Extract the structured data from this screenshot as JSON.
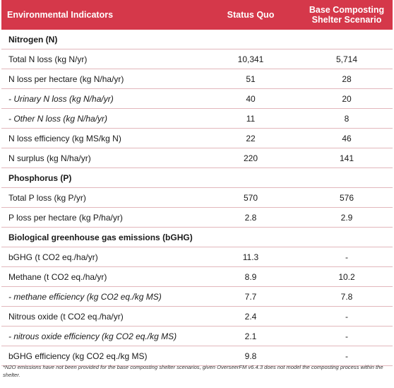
{
  "header": {
    "col1": "Environmental Indicators",
    "col2": "Status Quo",
    "col3_line1": "Base Composting",
    "col3_line2": "Shelter Scenario"
  },
  "rows": [
    {
      "type": "section",
      "label": "Nitrogen (N)",
      "sq": "",
      "bc": ""
    },
    {
      "type": "row",
      "label": "Total N loss (kg N/yr)",
      "sq": "10,341",
      "bc": "5,714"
    },
    {
      "type": "row",
      "label": "N loss per hectare (kg N/ha/yr)",
      "sq": "51",
      "bc": "28"
    },
    {
      "type": "sub",
      "label": "- Urinary N loss (kg N/ha/yr)",
      "sq": "40",
      "bc": "20"
    },
    {
      "type": "sub",
      "label": "- Other N loss (kg N/ha/yr)",
      "sq": "11",
      "bc": "8"
    },
    {
      "type": "row",
      "label": "N loss efficiency (kg MS/kg N)",
      "sq": "22",
      "bc": "46"
    },
    {
      "type": "row",
      "label": "N surplus (kg N/ha/yr)",
      "sq": "220",
      "bc": "141"
    },
    {
      "type": "section",
      "label": "Phosphorus (P)",
      "sq": "",
      "bc": ""
    },
    {
      "type": "row",
      "label": "Total P loss (kg P/yr)",
      "sq": "570",
      "bc": "576"
    },
    {
      "type": "row",
      "label": "P loss per hectare (kg P/ha/yr)",
      "sq": "2.8",
      "bc": "2.9"
    },
    {
      "type": "section",
      "label": "Biological greenhouse gas emissions (bGHG)",
      "sq": "",
      "bc": ""
    },
    {
      "type": "row",
      "label": "bGHG (t CO2 eq./ha/yr)",
      "sq": "11.3",
      "bc": "-"
    },
    {
      "type": "row",
      "label": "Methane (t CO2 eq./ha/yr)",
      "sq": "8.9",
      "bc": "10.2"
    },
    {
      "type": "sub",
      "label": "- methane efficiency (kg CO2 eq./kg MS)",
      "sq": "7.7",
      "bc": "7.8"
    },
    {
      "type": "row",
      "label": "Nitrous oxide (t CO2 eq./ha/yr)",
      "sq": "2.4",
      "bc": "-"
    },
    {
      "type": "sub",
      "label": "- nitrous oxide efficiency (kg CO2 eq./kg MS)",
      "sq": "2.1",
      "bc": "-"
    },
    {
      "type": "row",
      "label": "bGHG efficiency (kg CO2 eq./kg MS)",
      "sq": "9.8",
      "bc": "-"
    }
  ],
  "footnote": "*N2O emissions have not been provided for the base composting shelter scenarios, given OverseerFM v6.4.3 does not model the composting process within the shelter."
}
